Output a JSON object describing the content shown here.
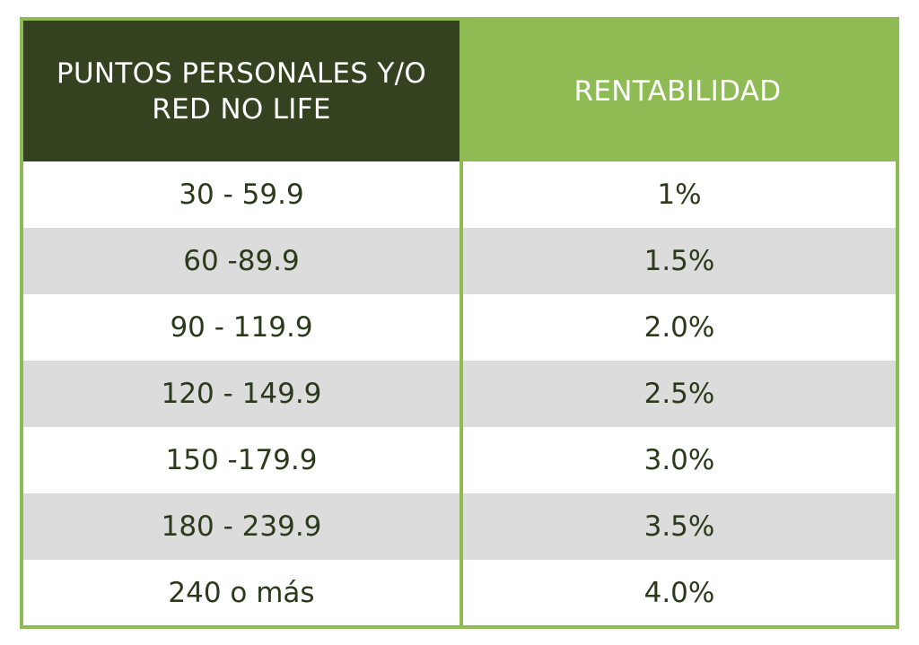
{
  "table": {
    "header": {
      "col1": "PUNTOS PERSONALES Y/O RED NO LIFE",
      "col2": "RENTABILIDAD"
    },
    "rows": [
      {
        "points": "30 - 59.9",
        "rate": "1%"
      },
      {
        "points": "60 -89.9",
        "rate": "1.5%"
      },
      {
        "points": "90 - 119.9",
        "rate": "2.0%"
      },
      {
        "points": "120 - 149.9",
        "rate": "2.5%"
      },
      {
        "points": "150 -179.9",
        "rate": "3.0%"
      },
      {
        "points": "180 - 239.9",
        "rate": "3.5%"
      },
      {
        "points": "240 o más",
        "rate": "4.0%"
      }
    ]
  },
  "colors": {
    "header_dark": "#34421f",
    "accent_green": "#8fbb55",
    "row_shade": "#dcdcdc",
    "body_text": "#2c3a1c"
  }
}
